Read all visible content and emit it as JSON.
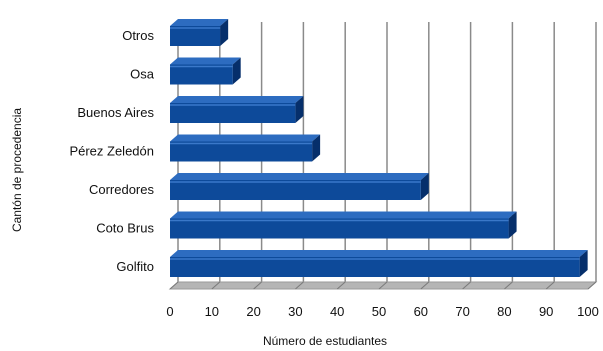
{
  "chart_data": {
    "type": "bar",
    "orientation": "horizontal",
    "style": "3d",
    "categories": [
      "Otros",
      "Osa",
      "Buenos Aires",
      "Pérez Zeledón",
      "Corredores",
      "Coto Brus",
      "Golfito"
    ],
    "values": [
      12,
      15,
      30,
      34,
      60,
      81,
      98
    ],
    "xlabel": "Número de estudiantes",
    "ylabel": "Cantón de procedencia",
    "xlim": [
      0,
      100
    ],
    "xticks": [
      "0",
      "10",
      "20",
      "30",
      "40",
      "50",
      "60",
      "70",
      "80",
      "90",
      "100"
    ],
    "grid": "vertical",
    "legend": "none",
    "colors": {
      "bar": "#0d4a9a",
      "bar_dark": "#062f6b",
      "bar_light": "#2d6cc0",
      "grid": "#8a8a8a",
      "floor": "#b5b5b5"
    }
  }
}
